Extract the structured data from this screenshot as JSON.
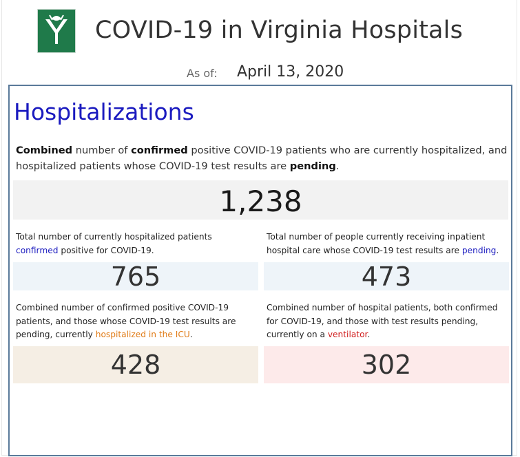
{
  "header": {
    "title": "COVID-19 in Virginia Hospitals",
    "as_of_label": "As of:",
    "as_of_date": "April 13, 2020",
    "logo_icon": "vhha-logo-icon"
  },
  "panel": {
    "heading": "Hospitalizations",
    "description": {
      "p1": "Combined",
      "p2": " number of ",
      "p3": "confirmed",
      "p4": " positive COVID-19 patients who are currently hospitalized, and hospitalized patients whose COVID-19 test results are ",
      "p5": "pending",
      "p6": "."
    },
    "total_value": "1,238",
    "confirmed": {
      "text1": "Total number of currently hospitalized patients ",
      "highlight": "confirmed",
      "text2": " positive for COVID-19.",
      "value": "765"
    },
    "pending": {
      "text1": "Total number of people currently receiving inpatient hospital care whose COVID-19 test results are ",
      "highlight": "pending",
      "text2": ".",
      "value": "473"
    },
    "icu": {
      "text1": "Combined number of confirmed positive COVID-19 patients, and those whose COVID-19 test results are pending, currently ",
      "highlight": "hospitalized in the ICU",
      "text2": ".",
      "value": "428"
    },
    "ventilator": {
      "text1": "Combined number of hospital patients, both confirmed for COVID-19, and those with test results pending, currently on a ",
      "highlight": "ventilator",
      "text2": ".",
      "value": "302"
    }
  },
  "colors": {
    "heading_blue": "#1a1abf",
    "icu_orange": "#e07b16",
    "vent_red": "#d01c1c",
    "logo_green": "#1f7a4a",
    "panel_border": "#5a7a9a"
  }
}
